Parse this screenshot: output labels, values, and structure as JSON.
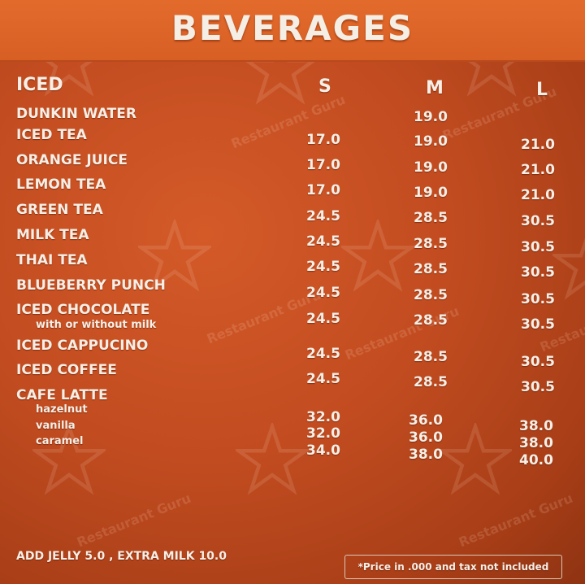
{
  "title": "BEVERAGES",
  "section_label": "ICED",
  "columns": [
    "S",
    "M",
    "L"
  ],
  "watermark": "Restaurant Guru",
  "items": [
    {
      "name": "DUNKIN WATER",
      "s": "",
      "m": "19.0",
      "l": ""
    },
    {
      "name": "ICED TEA",
      "s": "17.0",
      "m": "19.0",
      "l": "21.0"
    },
    {
      "name": "ORANGE JUICE",
      "s": "17.0",
      "m": "19.0",
      "l": "21.0"
    },
    {
      "name": "LEMON TEA",
      "s": "17.0",
      "m": "19.0",
      "l": "21.0"
    },
    {
      "name": "GREEN TEA",
      "s": "24.5",
      "m": "28.5",
      "l": "30.5"
    },
    {
      "name": "MILK TEA",
      "s": "24.5",
      "m": "28.5",
      "l": "30.5"
    },
    {
      "name": "THAI TEA",
      "s": "24.5",
      "m": "28.5",
      "l": "30.5"
    },
    {
      "name": "BLUEBERRY PUNCH",
      "s": "24.5",
      "m": "28.5",
      "l": "30.5"
    },
    {
      "name": "ICED CHOCOLATE",
      "sub": "with or without milk",
      "s": "24.5",
      "m": "28.5",
      "l": "30.5"
    },
    {
      "name": "ICED CAPPUCINO",
      "s": "24.5",
      "m": "28.5",
      "l": "30.5"
    },
    {
      "name": "ICED COFFEE",
      "s": "24.5",
      "m": "28.5",
      "l": "30.5"
    },
    {
      "name": "CAFE LATTE"
    }
  ],
  "latte_variants": [
    {
      "name": "hazelnut",
      "s": "32.0",
      "m": "36.0",
      "l": "38.0"
    },
    {
      "name": "vanilla",
      "s": "32.0",
      "m": "36.0",
      "l": "38.0"
    },
    {
      "name": "caramel",
      "s": "34.0",
      "m": "38.0",
      "l": "40.0"
    }
  ],
  "footer": {
    "addons": "ADD JELLY  5.0 ,  EXTRA MILK  10.0",
    "note": "*Price in .000 and tax not included"
  }
}
